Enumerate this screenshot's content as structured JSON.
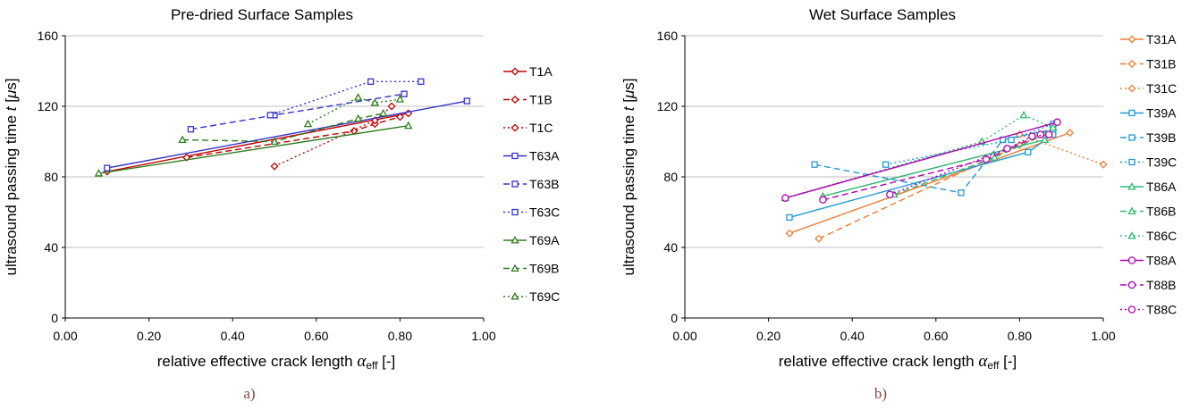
{
  "chart_data": [
    {
      "type": "line",
      "title": "Pre-dried Surface Samples",
      "xlabel": "relative effective crack length",
      "xlabel_symbol": "α",
      "xlabel_sub": "eff",
      "xlabel_unit": "[-]",
      "ylabel": "ultrasound passing time",
      "ylabel_symbol": "t",
      "ylabel_unit_pre": "[",
      "ylabel_unit_mu": "μ",
      "ylabel_unit_post": "s]",
      "subfigure_label": "a)",
      "xlim": [
        0,
        1
      ],
      "ylim": [
        0,
        160
      ],
      "xticks": [
        "0.00",
        "0.20",
        "0.40",
        "0.60",
        "0.80",
        "1.00"
      ],
      "yticks": [
        "0",
        "40",
        "80",
        "120",
        "160"
      ],
      "grid": "horizontal",
      "legend_position": "right",
      "series": [
        {
          "name": "T1A",
          "color": "#c00000",
          "dash": "solid",
          "marker": "diamond",
          "points": [
            [
              0.1,
              83
            ],
            [
              0.82,
              116
            ]
          ]
        },
        {
          "name": "T1B",
          "color": "#c00000",
          "dash": "dashed",
          "marker": "diamond",
          "points": [
            [
              0.29,
              91
            ],
            [
              0.69,
              106
            ],
            [
              0.74,
              110
            ],
            [
              0.8,
              114
            ]
          ]
        },
        {
          "name": "T1C",
          "color": "#c00000",
          "dash": "dotted",
          "marker": "diamond",
          "points": [
            [
              0.5,
              86
            ],
            [
              0.74,
              112
            ],
            [
              0.78,
              120
            ]
          ]
        },
        {
          "name": "T63A",
          "color": "#3333cc",
          "dash": "solid",
          "marker": "square",
          "points": [
            [
              0.1,
              85
            ],
            [
              0.96,
              123
            ]
          ]
        },
        {
          "name": "T63B",
          "color": "#3333cc",
          "dash": "dashed",
          "marker": "square",
          "points": [
            [
              0.3,
              107
            ],
            [
              0.5,
              115
            ],
            [
              0.81,
              127
            ]
          ]
        },
        {
          "name": "T63C",
          "color": "#3333cc",
          "dash": "dotted",
          "marker": "square",
          "points": [
            [
              0.49,
              115
            ],
            [
              0.73,
              134
            ],
            [
              0.85,
              134
            ]
          ]
        },
        {
          "name": "T69A",
          "color": "#2e7d1f",
          "dash": "solid",
          "marker": "triangle",
          "points": [
            [
              0.08,
              82
            ],
            [
              0.82,
              109
            ]
          ]
        },
        {
          "name": "T69B",
          "color": "#2e7d1f",
          "dash": "dashed",
          "marker": "triangle",
          "points": [
            [
              0.28,
              101
            ],
            [
              0.5,
              100
            ],
            [
              0.7,
              113
            ],
            [
              0.76,
              116
            ]
          ]
        },
        {
          "name": "T69C",
          "color": "#2e7d1f",
          "dash": "dotted",
          "marker": "triangle",
          "points": [
            [
              0.58,
              110
            ],
            [
              0.7,
              125
            ],
            [
              0.74,
              122
            ],
            [
              0.8,
              124
            ]
          ]
        }
      ]
    },
    {
      "type": "line",
      "title": "Wet Surface Samples",
      "xlabel": "relative effective crack length",
      "xlabel_symbol": "α",
      "xlabel_sub": "eff",
      "xlabel_unit": "[-]",
      "ylabel": "ultrasound passing time",
      "ylabel_symbol": "t",
      "ylabel_unit_pre": "[",
      "ylabel_unit_mu": "μ",
      "ylabel_unit_post": "s]",
      "subfigure_label": "b)",
      "xlim": [
        0,
        1
      ],
      "ylim": [
        0,
        160
      ],
      "xticks": [
        "0.00",
        "0.20",
        "0.40",
        "0.60",
        "0.80",
        "1.00"
      ],
      "yticks": [
        "0",
        "40",
        "80",
        "120",
        "160"
      ],
      "grid": "horizontal",
      "legend_position": "right",
      "series": [
        {
          "name": "T31A",
          "color": "#ed7d31",
          "dash": "solid",
          "marker": "diamond",
          "points": [
            [
              0.25,
              48
            ],
            [
              0.92,
              105
            ]
          ]
        },
        {
          "name": "T31B",
          "color": "#ed7d31",
          "dash": "dashed",
          "marker": "diamond",
          "points": [
            [
              0.32,
              45
            ],
            [
              0.8,
              98
            ],
            [
              0.86,
              104
            ]
          ]
        },
        {
          "name": "T31C",
          "color": "#ed7d31",
          "dash": "dotted",
          "marker": "diamond",
          "points": [
            [
              0.8,
              104
            ],
            [
              1.0,
              87
            ]
          ]
        },
        {
          "name": "T39A",
          "color": "#1f9ad6",
          "dash": "solid",
          "marker": "square",
          "points": [
            [
              0.25,
              57
            ],
            [
              0.82,
              94
            ],
            [
              0.88,
              104
            ]
          ]
        },
        {
          "name": "T39B",
          "color": "#1f9ad6",
          "dash": "dashed",
          "marker": "square",
          "points": [
            [
              0.31,
              87
            ],
            [
              0.66,
              71
            ],
            [
              0.76,
              101
            ],
            [
              0.88,
              107
            ]
          ]
        },
        {
          "name": "T39C",
          "color": "#1f9ad6",
          "dash": "dotted",
          "marker": "square",
          "points": [
            [
              0.48,
              87
            ],
            [
              0.78,
              101
            ],
            [
              0.88,
              110
            ]
          ]
        },
        {
          "name": "T86A",
          "color": "#2eb872",
          "dash": "solid",
          "marker": "triangle",
          "points": [
            [
              0.33,
              69
            ],
            [
              0.86,
              101
            ]
          ]
        },
        {
          "name": "T86B",
          "color": "#2eb872",
          "dash": "dashed",
          "marker": "triangle",
          "points": [
            [
              0.5,
              70
            ],
            [
              0.74,
              91
            ],
            [
              0.86,
              104
            ]
          ]
        },
        {
          "name": "T86C",
          "color": "#2eb872",
          "dash": "dotted",
          "marker": "triangle",
          "points": [
            [
              0.24,
              68
            ],
            [
              0.71,
              100
            ],
            [
              0.81,
              115
            ],
            [
              0.88,
              108
            ]
          ]
        },
        {
          "name": "T88A",
          "color": "#b000b0",
          "dash": "solid",
          "marker": "circle",
          "points": [
            [
              0.24,
              68
            ],
            [
              0.89,
              111
            ]
          ]
        },
        {
          "name": "T88B",
          "color": "#b000b0",
          "dash": "dashed",
          "marker": "circle",
          "points": [
            [
              0.33,
              67
            ],
            [
              0.72,
              90
            ],
            [
              0.85,
              104
            ]
          ]
        },
        {
          "name": "T88C",
          "color": "#b000b0",
          "dash": "dotted",
          "marker": "circle",
          "points": [
            [
              0.49,
              70
            ],
            [
              0.77,
              96
            ],
            [
              0.83,
              103
            ],
            [
              0.87,
              104
            ]
          ]
        }
      ]
    }
  ]
}
